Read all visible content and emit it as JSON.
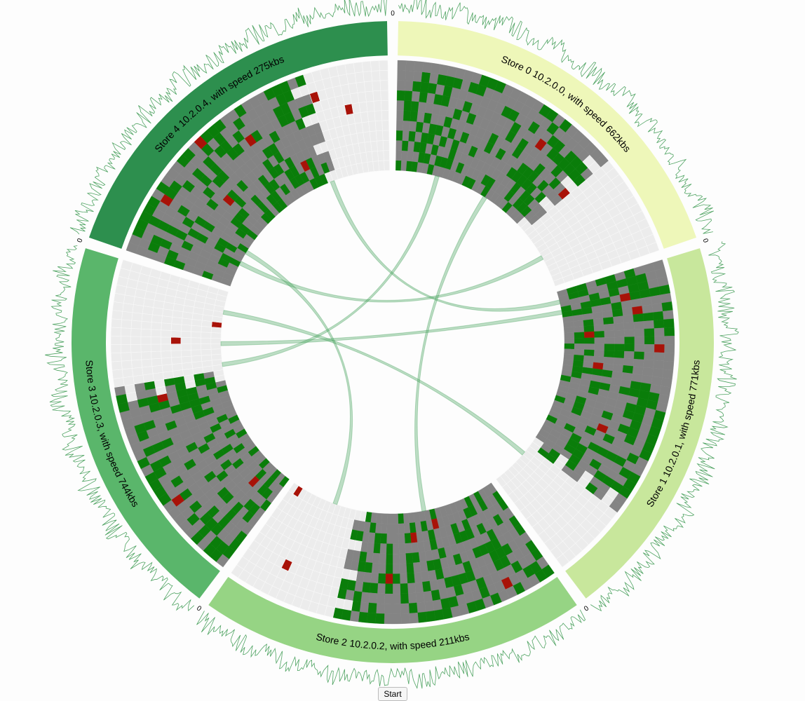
{
  "stores": [
    {
      "label": "Store 0 10.2.0.0, with speed 662kbs",
      "color": "#eef7b9",
      "zero": "0",
      "speed_kbs": 662,
      "failed": [
        [
          5,
          27
        ],
        [
          7,
          20
        ]
      ]
    },
    {
      "label": "Store 1 10.2.0.1, with speed 771kbs",
      "color": "#c8e79c",
      "zero": "0",
      "speed_kbs": 771,
      "failed": [
        [
          2,
          8
        ],
        [
          6,
          3
        ],
        [
          3,
          13
        ],
        [
          9,
          10
        ],
        [
          7,
          5
        ],
        [
          5,
          22
        ]
      ]
    },
    {
      "label": "Store 2 10.2.0.2, with speed 211kbs",
      "color": "#96d484",
      "zero": "0",
      "speed_kbs": 211,
      "failed": [
        [
          9,
          5
        ],
        [
          1,
          12
        ],
        [
          2,
          16
        ],
        [
          6,
          20
        ],
        [
          7,
          34
        ],
        [
          0,
          38
        ],
        [
          5,
          40
        ]
      ]
    },
    {
      "label": "Store 3 10.2.0.3, with speed 744kbs",
      "color": "#5ab66b",
      "zero": "0",
      "speed_kbs": 744,
      "failed": [
        [
          2,
          4
        ],
        [
          9,
          9
        ],
        [
          6,
          22
        ],
        [
          4,
          30
        ],
        [
          0,
          33
        ]
      ]
    },
    {
      "label": "Store 4 10.2.0.4, with speed 275kbs",
      "color": "#2d8f4e",
      "zero": "0",
      "speed_kbs": 275,
      "failed": [
        [
          9,
          7
        ],
        [
          4,
          12
        ],
        [
          7,
          20
        ],
        [
          2,
          25
        ],
        [
          8,
          30
        ],
        [
          6,
          34
        ],
        [
          10,
          15
        ]
      ]
    }
  ],
  "transfers": [
    {
      "from": [
        0,
        0.85
      ],
      "to": [
        4,
        0.12
      ]
    },
    {
      "from": [
        0,
        0.45
      ],
      "to": [
        2,
        0.35
      ]
    },
    {
      "from": [
        0,
        0.2
      ],
      "to": [
        3,
        0.65
      ]
    },
    {
      "from": [
        1,
        0.1
      ],
      "to": [
        3,
        0.75
      ]
    },
    {
      "from": [
        1,
        0.82
      ],
      "to": [
        3,
        0.9
      ]
    },
    {
      "from": [
        2,
        0.78
      ],
      "to": [
        4,
        0.18
      ]
    },
    {
      "from": [
        4,
        0.72
      ],
      "to": [
        1,
        0.05
      ]
    }
  ],
  "colors": {
    "block_free": "#ececec",
    "block_empty": "#848484",
    "block_ok": "#0a7d0a",
    "block_failed": "#a81208",
    "chord": "#41a05a",
    "spectrum": "#3d9a52"
  },
  "start_button": "Start"
}
